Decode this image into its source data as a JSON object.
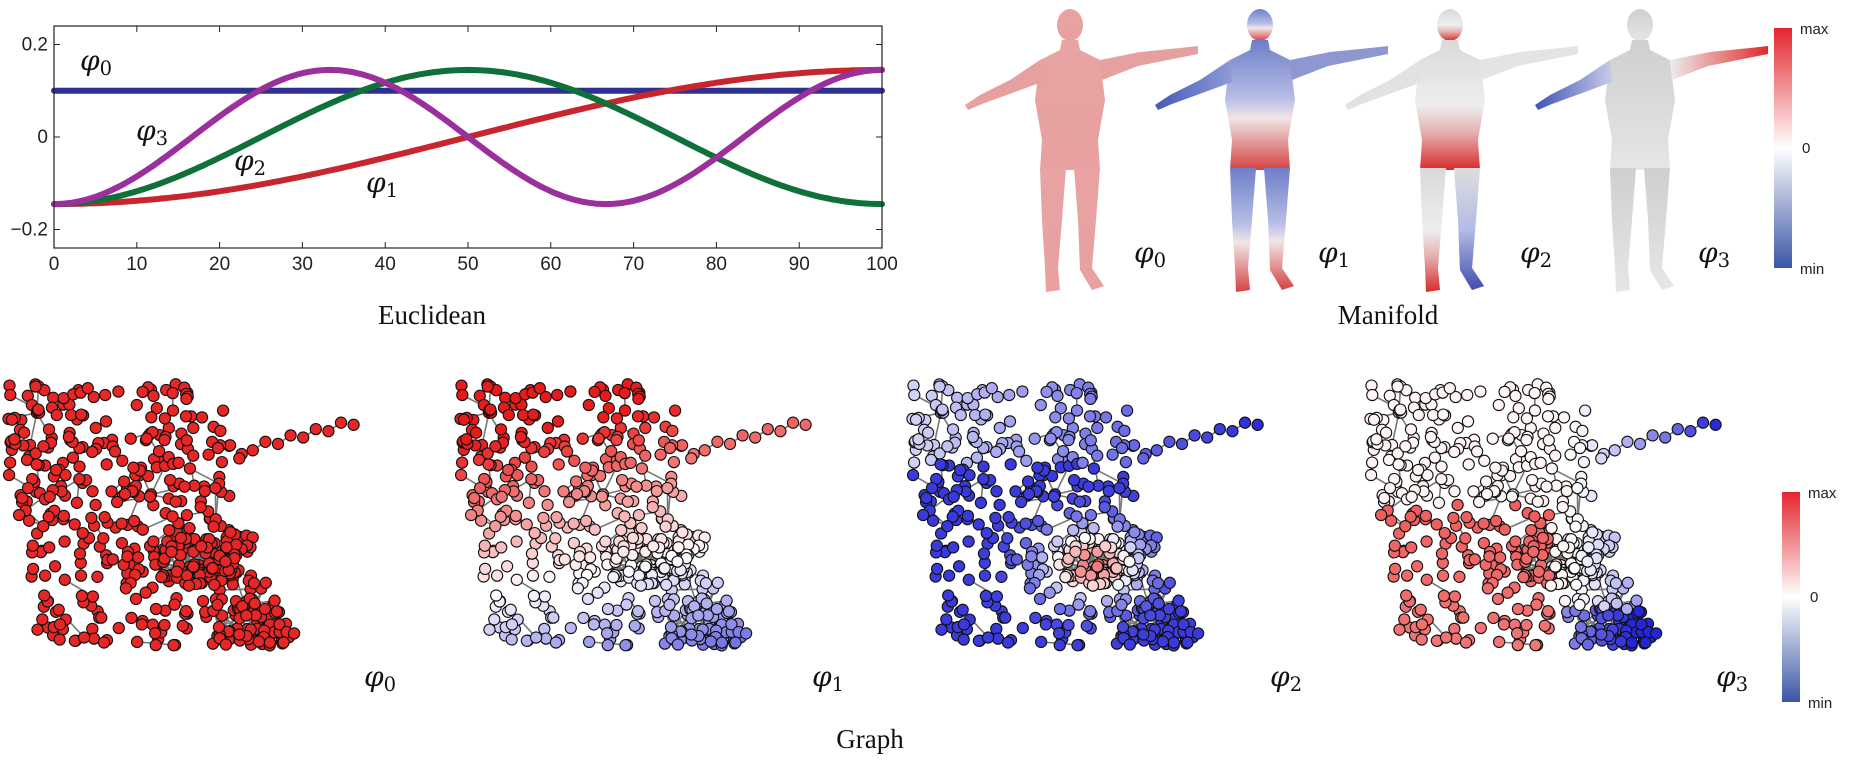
{
  "captions": {
    "euclidean": "Euclidean",
    "manifold": "Manifold",
    "graph": "Graph"
  },
  "phi_symbol": "φ",
  "colorbar": {
    "max": "max",
    "zero": "0",
    "min": "min",
    "colors": {
      "max": "#e3262d",
      "mid": "#ffffff",
      "min": "#3a56a6"
    }
  },
  "chart_data": {
    "type": "line",
    "xlim": [
      0,
      100
    ],
    "ylim": [
      -0.24,
      0.24
    ],
    "x_ticks": [
      0,
      10,
      20,
      30,
      40,
      50,
      60,
      70,
      80,
      90,
      100
    ],
    "x_tick_labels": [
      "0",
      "10",
      "20",
      "30",
      "40",
      "50",
      "60",
      "70",
      "80",
      "90",
      "100"
    ],
    "y_ticks": [
      0.2,
      0,
      -0.2
    ],
    "y_tick_labels": [
      "0.2",
      "0",
      "−0.2"
    ],
    "title": "Euclidean",
    "xlabel": "",
    "ylabel": "",
    "series": [
      {
        "name": "φ0",
        "label_sub": "0",
        "color": "#2e3192",
        "amplitude": 0.1,
        "frequency": 0
      },
      {
        "name": "φ1",
        "label_sub": "1",
        "color": "#c8262f",
        "amplitude": 0.145,
        "frequency": 1
      },
      {
        "name": "φ2",
        "label_sub": "2",
        "color": "#10703a",
        "amplitude": 0.145,
        "frequency": 2
      },
      {
        "name": "φ3",
        "label_sub": "3",
        "color": "#9b2f9b",
        "amplitude": 0.145,
        "frequency": 3
      }
    ]
  },
  "manifold": {
    "labels": [
      "0",
      "1",
      "2",
      "3"
    ]
  },
  "graph": {
    "labels": [
      "0",
      "1",
      "2",
      "3"
    ],
    "node_colors": {
      "red": "#e81b1b",
      "blue": "#2424d8",
      "white": "#ffffff",
      "edge": "#777777"
    }
  }
}
